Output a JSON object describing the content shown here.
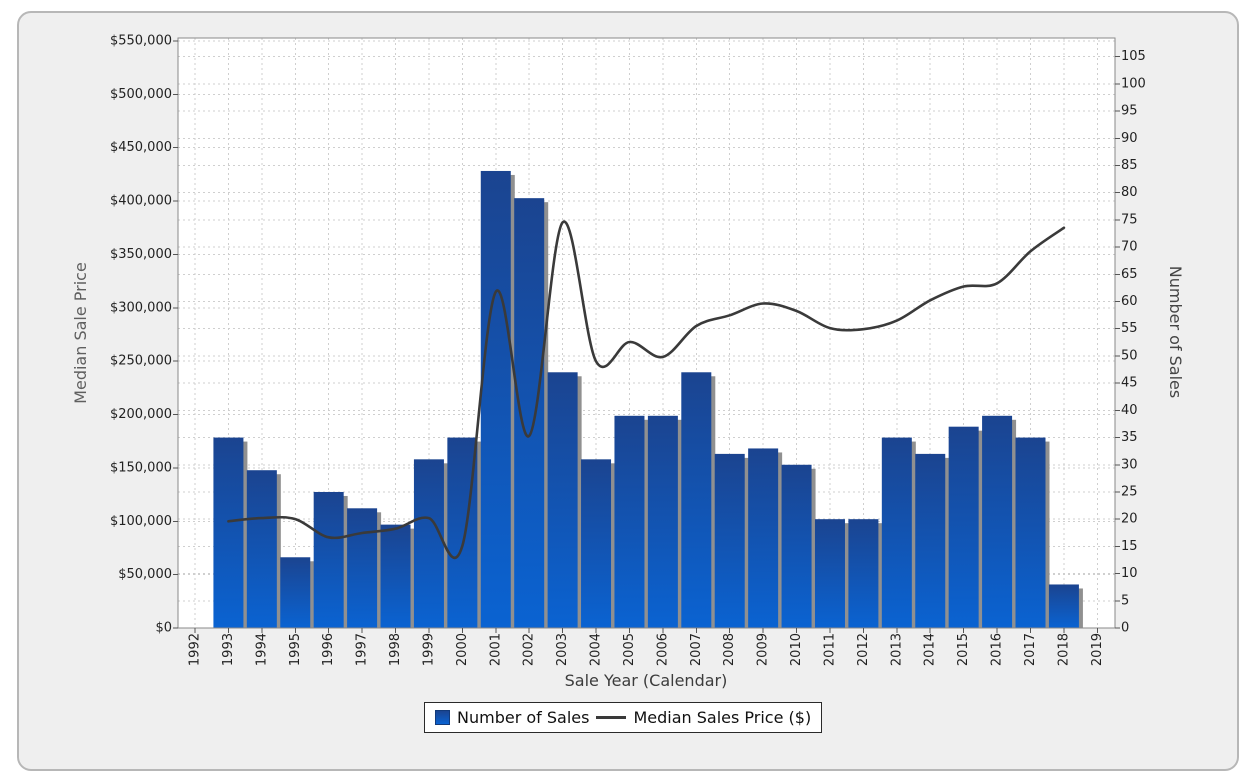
{
  "chart_data": {
    "type": "combo",
    "categories": [
      "1992",
      "1993",
      "1994",
      "1995",
      "1996",
      "1997",
      "1998",
      "1999",
      "2000",
      "2001",
      "2002",
      "2003",
      "2004",
      "2005",
      "2006",
      "2007",
      "2008",
      "2009",
      "2010",
      "2011",
      "2012",
      "2013",
      "2014",
      "2015",
      "2016",
      "2017",
      "2018",
      "2019"
    ],
    "series": [
      {
        "name": "Number of Sales",
        "type": "bar",
        "axis": "right",
        "values": [
          null,
          35,
          29,
          13,
          25,
          22,
          19,
          31,
          35,
          84,
          79,
          47,
          31,
          39,
          39,
          47,
          32,
          33,
          30,
          20,
          20,
          35,
          32,
          37,
          39,
          35,
          8,
          null
        ]
      },
      {
        "name": "Median Sales Price ($)",
        "type": "line",
        "axis": "left",
        "values": [
          null,
          100000,
          103000,
          102000,
          85000,
          89000,
          93000,
          103000,
          77000,
          315000,
          180000,
          380000,
          250000,
          268000,
          254000,
          283000,
          293000,
          304000,
          297000,
          281000,
          280000,
          288000,
          307000,
          320000,
          323000,
          353000,
          375000,
          null
        ]
      }
    ],
    "x_axis": {
      "title": "Sale Year (Calendar)"
    },
    "left_axis": {
      "title": "Median Sale Price",
      "min": 0,
      "max": 550000,
      "step": 50000,
      "tick_prefix": "$"
    },
    "right_axis": {
      "title": "Number of Sales",
      "min": 0,
      "max": 105,
      "step": 5
    },
    "legend": {
      "items": [
        {
          "label": "Number of Sales",
          "swatch": "bar"
        },
        {
          "label": "Median Sales Price ($)",
          "swatch": "line"
        }
      ]
    },
    "grid": "dotted, horizontal at both axes ticks, vertical at each year",
    "colors": {
      "bar_top": "#1b4490",
      "bar_bottom": "#0a63d2",
      "bar_shadow": "#909090",
      "line": "#3a3a3a",
      "grid": "#cfcfcf",
      "plot_bg": "#ffffff",
      "plot_border": "#8a8a8a",
      "panel_bg": "#efefef",
      "panel_border": "#b7b7b7",
      "tick_label": "#222222",
      "axis_title": "#5f5f5f",
      "tick_mark": "#555555"
    }
  }
}
